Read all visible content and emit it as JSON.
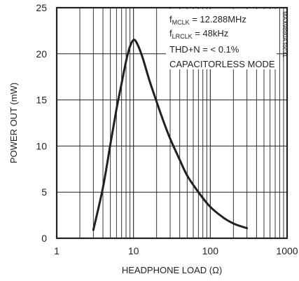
{
  "chart_data": {
    "type": "line",
    "xlabel": "HEADPHONE LOAD (Ω)",
    "ylabel": "POWER OUT (mW)",
    "x_scale": "log",
    "xlim": [
      1,
      1000
    ],
    "ylim": [
      0,
      25
    ],
    "x_ticks": [
      1,
      10,
      100,
      1000
    ],
    "x_tick_labels": [
      "1",
      "10",
      "100",
      "1000"
    ],
    "y_ticks": [
      0,
      5,
      10,
      15,
      20,
      25
    ],
    "y_tick_labels": [
      "0",
      "5",
      "10",
      "15",
      "20",
      "25"
    ],
    "grid": true,
    "series": [
      {
        "color": "#231f20",
        "x": [
          3,
          4,
          5,
          6,
          7,
          8,
          9,
          10,
          11,
          13,
          16,
          20,
          25,
          30,
          40,
          50,
          70,
          100,
          150,
          200,
          250,
          300
        ],
        "y": [
          0.9,
          5.5,
          10.2,
          14.0,
          16.8,
          19.2,
          20.8,
          21.5,
          21.2,
          19.7,
          17.2,
          14.8,
          12.5,
          10.8,
          8.5,
          6.8,
          5.0,
          3.4,
          2.2,
          1.6,
          1.3,
          1.1
        ]
      }
    ],
    "annotations": [
      {
        "main": "f",
        "sub": "MCLK",
        "rest": " = 12.288MHz"
      },
      {
        "main": "f",
        "sub": "LRCLK",
        "rest": " = 48kHz"
      },
      {
        "main": "THD+N = < 0.1%",
        "sub": "",
        "rest": ""
      },
      {
        "main": "CAPACITORLESS MODE",
        "sub": "",
        "rest": ""
      }
    ],
    "watermark": "MAX9880A toc31"
  }
}
